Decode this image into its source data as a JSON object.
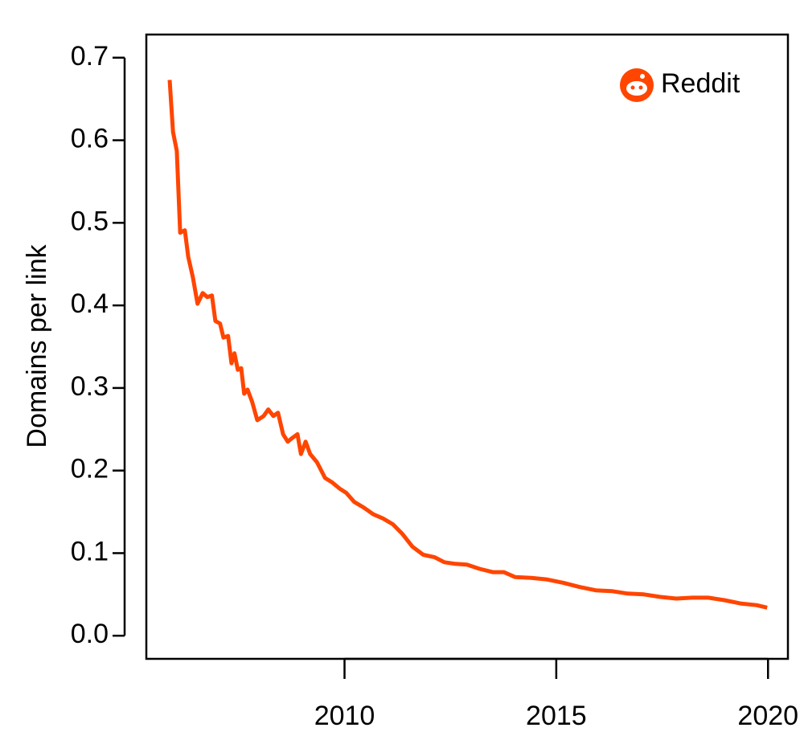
{
  "chart_data": {
    "type": "line",
    "y_label": "Domains per link",
    "legend": "top-right",
    "x": [
      2005.87,
      2005.95,
      2006.04,
      2006.12,
      2006.23,
      2006.31,
      2006.42,
      2006.53,
      2006.65,
      2006.76,
      2006.87,
      2006.95,
      2007.06,
      2007.14,
      2007.25,
      2007.33,
      2007.4,
      2007.48,
      2007.56,
      2007.63,
      2007.71,
      2007.82,
      2007.94,
      2008.09,
      2008.2,
      2008.32,
      2008.43,
      2008.55,
      2008.66,
      2008.78,
      2008.89,
      2008.97,
      2009.08,
      2009.19,
      2009.35,
      2009.54,
      2009.7,
      2009.89,
      2010.04,
      2010.23,
      2010.46,
      2010.68,
      2010.91,
      2011.14,
      2011.37,
      2011.6,
      2011.86,
      2012.13,
      2012.36,
      2012.62,
      2012.89,
      2013.19,
      2013.5,
      2013.76,
      2014.03,
      2014.41,
      2014.79,
      2015.17,
      2015.55,
      2015.93,
      2016.31,
      2016.69,
      2017.07,
      2017.45,
      2017.83,
      2018.21,
      2018.59,
      2018.97,
      2019.35,
      2019.73,
      2019.98
    ],
    "series": [
      {
        "name": "Reddit",
        "color": "#ff4500",
        "values": [
          0.673,
          0.61,
          0.587,
          0.488,
          0.491,
          0.459,
          0.434,
          0.402,
          0.415,
          0.41,
          0.412,
          0.381,
          0.378,
          0.361,
          0.363,
          0.33,
          0.342,
          0.322,
          0.324,
          0.293,
          0.298,
          0.283,
          0.261,
          0.266,
          0.274,
          0.266,
          0.27,
          0.244,
          0.235,
          0.24,
          0.244,
          0.22,
          0.235,
          0.22,
          0.21,
          0.191,
          0.186,
          0.178,
          0.173,
          0.162,
          0.155,
          0.147,
          0.142,
          0.135,
          0.123,
          0.108,
          0.098,
          0.095,
          0.089,
          0.087,
          0.086,
          0.081,
          0.077,
          0.077,
          0.071,
          0.07,
          0.068,
          0.064,
          0.059,
          0.055,
          0.054,
          0.051,
          0.05,
          0.047,
          0.045,
          0.046,
          0.046,
          0.043,
          0.039,
          0.037,
          0.034
        ]
      }
    ],
    "xlim": [
      2005.32,
      2020.47
    ],
    "ylim": [
      -0.028,
      0.728
    ],
    "xticks": [
      2010,
      2015,
      2020
    ],
    "yticks": [
      {
        "value": 0,
        "label": "0.0"
      },
      0.1,
      0.2,
      0.3,
      0.4,
      0.5,
      0.6,
      0.7
    ]
  }
}
